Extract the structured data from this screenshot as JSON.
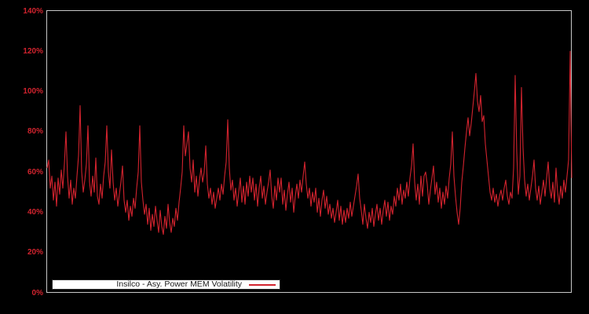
{
  "window": {
    "background": "#000000"
  },
  "chart": {
    "colors": {
      "series": "#d2232e",
      "axis_labels": "#d2232e",
      "plot_border": "#c8c8c8",
      "legend_bg": "#ffffff",
      "legend_text": "#1a1a1a"
    }
  },
  "legend": {
    "label": "Insilco - Asy. Power MEM Volatility"
  },
  "chart_data": {
    "type": "line",
    "title": "",
    "xlabel": "",
    "ylabel": "",
    "grid": false,
    "legend_position": "bottom-left-inside",
    "y_axis": {
      "unit": "%",
      "min": 0,
      "max": 140,
      "tick_step": 20,
      "tick_values": [
        0,
        20,
        40,
        60,
        80,
        100,
        120,
        140
      ],
      "tick_labels": [
        "0%",
        "20%",
        "40%",
        "60%",
        "80%",
        "100%",
        "120%",
        "140%"
      ]
    },
    "x_axis": {
      "tick_labels": []
    },
    "series": [
      {
        "name": "Insilco - Asy. Power MEM Volatility",
        "color": "#d2232e",
        "unit": "%",
        "values": [
          62,
          66,
          52,
          58,
          46,
          55,
          43,
          57,
          49,
          61,
          52,
          64,
          80,
          58,
          47,
          56,
          44,
          52,
          47,
          58,
          68,
          93,
          60,
          50,
          56,
          64,
          83,
          55,
          48,
          58,
          50,
          67,
          48,
          44,
          54,
          47,
          58,
          65,
          83,
          60,
          52,
          71,
          55,
          46,
          52,
          43,
          49,
          55,
          63,
          46,
          40,
          46,
          36,
          43,
          38,
          47,
          42,
          52,
          60,
          83,
          55,
          46,
          39,
          44,
          34,
          42,
          31,
          39,
          33,
          43,
          36,
          30,
          41,
          33,
          29,
          38,
          32,
          44,
          35,
          30,
          37,
          33,
          42,
          36,
          45,
          52,
          60,
          83,
          68,
          74,
          80,
          62,
          55,
          66,
          50,
          58,
          48,
          56,
          62,
          55,
          60,
          73,
          54,
          47,
          52,
          44,
          50,
          42,
          47,
          52,
          46,
          54,
          49,
          58,
          65,
          86,
          62,
          51,
          56,
          46,
          52,
          43,
          50,
          57,
          45,
          53,
          44,
          55,
          48,
          58,
          50,
          57,
          46,
          54,
          43,
          52,
          58,
          47,
          53,
          44,
          50,
          55,
          61,
          48,
          42,
          53,
          46,
          57,
          50,
          57,
          44,
          51,
          41,
          49,
          55,
          45,
          52,
          40,
          48,
          54,
          47,
          56,
          50,
          58,
          65,
          54,
          47,
          52,
          43,
          50,
          45,
          52,
          40,
          47,
          38,
          46,
          51,
          42,
          48,
          39,
          44,
          37,
          42,
          35,
          40,
          46,
          36,
          43,
          34,
          41,
          35,
          42,
          37,
          45,
          38,
          43,
          48,
          53,
          59,
          47,
          41,
          34,
          44,
          37,
          32,
          40,
          35,
          42,
          33,
          39,
          44,
          36,
          42,
          34,
          41,
          46,
          38,
          45,
          36,
          43,
          39,
          48,
          43,
          52,
          46,
          54,
          44,
          51,
          47,
          55,
          48,
          57,
          63,
          74,
          55,
          46,
          54,
          44,
          58,
          48,
          58,
          60,
          54,
          44,
          51,
          57,
          63,
          49,
          55,
          45,
          52,
          42,
          50,
          44,
          53,
          47,
          57,
          64,
          80,
          58,
          48,
          40,
          34,
          42,
          55,
          63,
          72,
          80,
          87,
          78,
          84,
          92,
          100,
          109,
          95,
          90,
          98,
          85,
          88,
          74,
          66,
          58,
          50,
          46,
          52,
          45,
          49,
          43,
          48,
          51,
          46,
          52,
          56,
          48,
          44,
          50,
          47,
          62,
          108,
          70,
          49,
          58,
          102,
          72,
          56,
          48,
          54,
          46,
          52,
          58,
          66,
          52,
          46,
          53,
          44,
          50,
          56,
          48,
          57,
          65,
          52,
          47,
          55,
          45,
          62,
          50,
          44,
          53,
          47,
          56,
          50,
          58,
          66,
          120,
          57
        ]
      }
    ]
  }
}
